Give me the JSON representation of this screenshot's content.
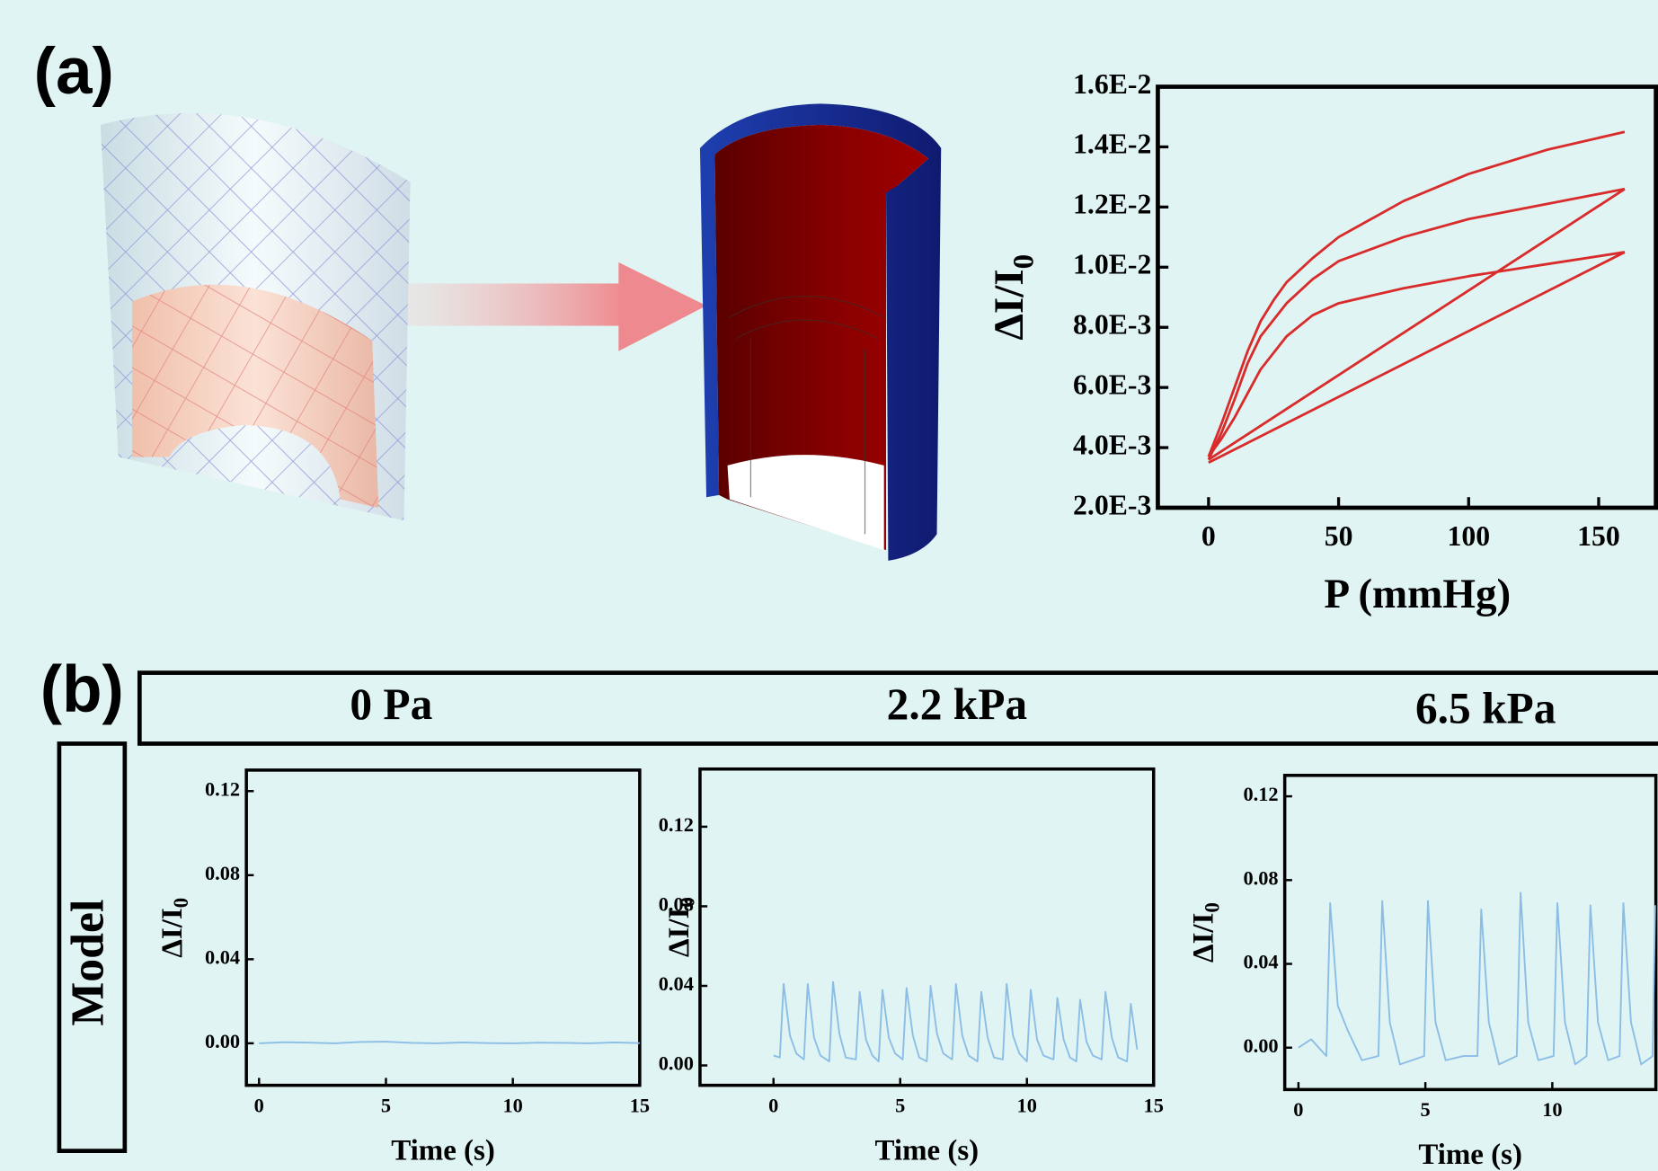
{
  "panel_labels": [
    "(a)",
    "(b)"
  ],
  "conditions": [
    "0 Pa",
    "2.2 kPa",
    "6.5 kPa"
  ],
  "row_label": "Model",
  "chart_data": [
    {
      "type": "line",
      "xlabel": "P (mmHg)",
      "ylabel": "ΔI/I",
      "ylabel_subscript": "0",
      "xlim": [
        -19.5,
        172
      ],
      "xticks": [
        0,
        50,
        100,
        150
      ],
      "ylim": [
        0.002,
        0.016
      ],
      "yticks": [
        {
          "value": 0.002,
          "label": "2.0E-3"
        },
        {
          "value": 0.004,
          "label": "4.0E-3"
        },
        {
          "value": 0.006,
          "label": "6.0E-3"
        },
        {
          "value": 0.008,
          "label": "8.0E-3"
        },
        {
          "value": 0.01,
          "label": "1.0E-2"
        },
        {
          "value": 0.012,
          "label": "1.2E-2"
        },
        {
          "value": 0.014,
          "label": "1.4E-2"
        },
        {
          "value": 0.016,
          "label": "1.6E-2"
        }
      ],
      "series": [
        {
          "color": "#d92b2b",
          "x": [
            0,
            5,
            10,
            15,
            20,
            25,
            30,
            40,
            50,
            75,
            100,
            130,
            160
          ],
          "values": [
            0.0037,
            0.0048,
            0.006,
            0.0072,
            0.0082,
            0.0089,
            0.0095,
            0.0103,
            0.011,
            0.0122,
            0.0131,
            0.0139,
            0.0145
          ]
        },
        {
          "color": "#d92b2b",
          "x": [
            0,
            5,
            10,
            15,
            20,
            30,
            40,
            50,
            75,
            100,
            130,
            160
          ],
          "values": [
            0.0036,
            0.0045,
            0.0056,
            0.0068,
            0.0077,
            0.0088,
            0.0096,
            0.0102,
            0.011,
            0.0116,
            0.0121,
            0.0126
          ]
        },
        {
          "color": "#d92b2b",
          "x": [
            0,
            5,
            10,
            15,
            20,
            30,
            40,
            50,
            75,
            100,
            130,
            160
          ],
          "values": [
            0.0037,
            0.0043,
            0.005,
            0.0058,
            0.0066,
            0.0077,
            0.0084,
            0.0088,
            0.0093,
            0.0097,
            0.0101,
            0.0105
          ]
        },
        {
          "color": "#d92b2b",
          "x": [
            0,
            160
          ],
          "values": [
            0.0036,
            0.0126
          ]
        },
        {
          "color": "#d92b2b",
          "x": [
            0,
            160
          ],
          "values": [
            0.0035,
            0.0105
          ]
        }
      ]
    },
    {
      "type": "line",
      "xlabel": "Time (s)",
      "ylabel": "ΔI/I",
      "ylabel_subscript": "0",
      "xlim": [
        -0.5,
        15
      ],
      "xticks": [
        0,
        5,
        10,
        15
      ],
      "ylim": [
        -0.02,
        0.13
      ],
      "yticks": [
        0.0,
        0.04,
        0.08,
        0.12
      ],
      "yticks_labels": [
        "0.00",
        "0.04",
        "0.08",
        "0.12"
      ],
      "series": [
        {
          "color": "#8bbde6",
          "x": [
            0,
            1,
            2,
            3,
            4,
            5,
            6,
            7,
            8,
            9,
            10,
            11,
            12,
            13,
            14,
            15
          ],
          "values": [
            0.0,
            0.0005,
            0.0003,
            0.0,
            0.0006,
            0.0008,
            0.0002,
            0.0,
            0.0004,
            0.0001,
            0.0,
            0.0003,
            0.0002,
            0.0,
            0.0004,
            0.0001
          ]
        }
      ]
    },
    {
      "type": "line",
      "xlabel": "Time (s)",
      "ylabel": "ΔI/I",
      "ylabel_subscript": "0",
      "xlim": [
        -2.9,
        15
      ],
      "xticks": [
        0,
        5,
        10,
        15
      ],
      "ylim": [
        -0.01,
        0.149
      ],
      "yticks": [
        0.0,
        0.04,
        0.08,
        0.12
      ],
      "yticks_labels": [
        "0.00",
        "0.04",
        "0.08",
        "0.12"
      ],
      "series": [
        {
          "color": "#8bbde6",
          "x": [
            0,
            0.25,
            0.4,
            0.65,
            0.9,
            1.2,
            1.35,
            1.6,
            1.85,
            2.2,
            2.35,
            2.6,
            2.85,
            3.25,
            3.4,
            3.65,
            3.9,
            4.15,
            4.3,
            4.55,
            4.8,
            5.1,
            5.25,
            5.5,
            5.75,
            6.05,
            6.2,
            6.45,
            6.7,
            7.05,
            7.2,
            7.45,
            7.7,
            8.05,
            8.2,
            8.45,
            8.7,
            9.05,
            9.2,
            9.45,
            9.7,
            10.0,
            10.15,
            10.4,
            10.65,
            11.05,
            11.2,
            11.45,
            11.7,
            11.95,
            12.1,
            12.35,
            12.6,
            12.95,
            13.1,
            13.35,
            13.6,
            13.95,
            14.1,
            14.35
          ],
          "values": [
            0.005,
            0.004,
            0.041,
            0.015,
            0.006,
            0.003,
            0.041,
            0.014,
            0.005,
            0.002,
            0.042,
            0.016,
            0.004,
            0.003,
            0.037,
            0.013,
            0.005,
            0.002,
            0.038,
            0.014,
            0.006,
            0.003,
            0.039,
            0.015,
            0.004,
            0.002,
            0.04,
            0.016,
            0.006,
            0.003,
            0.041,
            0.015,
            0.005,
            0.002,
            0.037,
            0.014,
            0.004,
            0.003,
            0.041,
            0.015,
            0.006,
            0.002,
            0.038,
            0.013,
            0.005,
            0.003,
            0.034,
            0.013,
            0.004,
            0.002,
            0.033,
            0.012,
            0.005,
            0.003,
            0.037,
            0.014,
            0.004,
            0.002,
            0.031,
            0.008
          ]
        }
      ]
    },
    {
      "type": "line",
      "xlabel": "Time (s)",
      "ylabel": "ΔI/I",
      "ylabel_subscript": "0",
      "xlim": [
        -0.54,
        14.08
      ],
      "xticks": [
        0,
        5,
        10
      ],
      "ylim": [
        -0.02,
        0.13
      ],
      "yticks": [
        0.0,
        0.04,
        0.08,
        0.12
      ],
      "yticks_labels": [
        "0.00",
        "0.04",
        "0.08",
        "0.12"
      ],
      "series": [
        {
          "color": "#8bbde6",
          "x": [
            0,
            0.5,
            1.1,
            1.25,
            1.55,
            1.95,
            2.5,
            3.15,
            3.3,
            3.6,
            4.0,
            4.95,
            5.1,
            5.4,
            5.8,
            6.5,
            7.05,
            7.2,
            7.5,
            7.9,
            8.6,
            8.75,
            9.05,
            9.45,
            10.05,
            10.2,
            10.5,
            10.9,
            11.35,
            11.5,
            11.8,
            12.2,
            12.65,
            12.8,
            13.1,
            13.5,
            13.95,
            14.05
          ],
          "values": [
            0.0,
            0.004,
            -0.004,
            0.069,
            0.02,
            0.008,
            -0.006,
            -0.004,
            0.07,
            0.012,
            -0.008,
            -0.004,
            0.07,
            0.012,
            -0.006,
            -0.004,
            -0.004,
            0.066,
            0.012,
            -0.008,
            -0.004,
            0.074,
            0.012,
            -0.006,
            -0.004,
            0.069,
            0.012,
            -0.008,
            -0.004,
            0.068,
            0.012,
            -0.006,
            -0.004,
            0.069,
            0.012,
            -0.008,
            -0.004,
            0.068
          ]
        }
      ]
    }
  ]
}
